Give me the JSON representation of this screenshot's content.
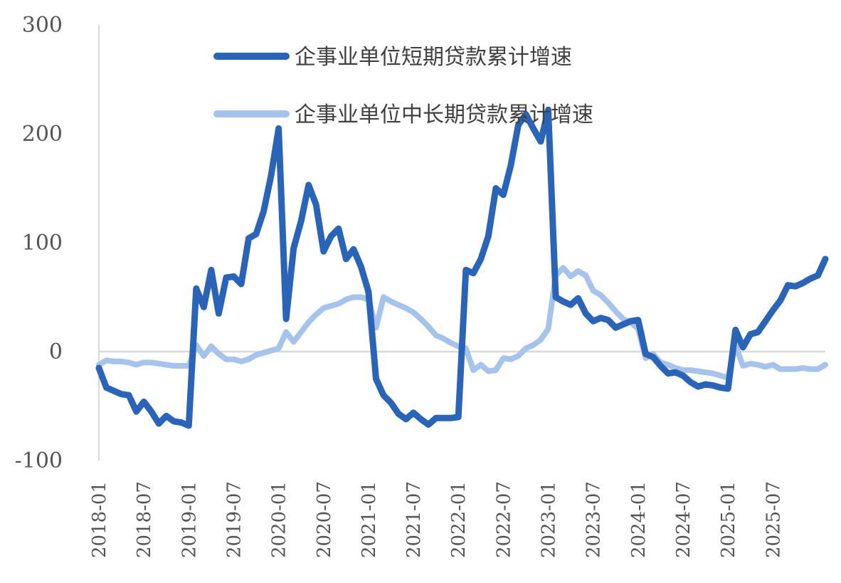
{
  "chart_data": {
    "type": "line",
    "title": "",
    "xlabel": "",
    "ylabel": "",
    "ylim": [
      -100,
      300
    ],
    "yticks": [
      300,
      200,
      100,
      0,
      -100
    ],
    "xtick_labels": [
      "2018-01",
      "2018-07",
      "2019-01",
      "2019-07",
      "2020-01",
      "2020-07",
      "2021-01",
      "2021-07",
      "2022-01",
      "2022-07",
      "2023-01",
      "2023-07",
      "2024-01",
      "2024-07",
      "2025-01",
      "2025-07"
    ],
    "grid": false,
    "legend_position": "top",
    "x_start": "2018-01",
    "series": [
      {
        "name": "企事业单位短期贷款累计增速",
        "color": "#2a64b8",
        "values": [
          -15,
          -33,
          -36,
          -39,
          -40,
          -55,
          -46,
          -55,
          -66,
          -59,
          -64,
          -65,
          -68,
          58,
          41,
          75,
          35,
          68,
          69,
          62,
          104,
          108,
          129,
          162,
          205,
          30,
          95,
          120,
          153,
          135,
          92,
          106,
          113,
          85,
          94,
          78,
          55,
          -25,
          -40,
          -47,
          -57,
          -62,
          -56,
          -62,
          -67,
          -61,
          -61,
          -61,
          -60,
          75,
          72,
          85,
          106,
          150,
          144,
          171,
          208,
          218,
          205,
          193,
          222,
          50,
          46,
          43,
          49,
          35,
          28,
          31,
          29,
          22,
          25,
          28,
          29,
          -2,
          -5,
          -13,
          -20,
          -19,
          -22,
          -28,
          -32,
          -30,
          -31,
          -33,
          -34,
          20,
          4,
          16,
          18,
          28,
          38,
          47,
          61,
          60,
          63,
          67,
          70,
          85
        ]
      },
      {
        "name": "企事业单位中长期贷款累计增速",
        "color": "#a6c3ec",
        "values": [
          -12,
          -8,
          -9,
          -9,
          -10,
          -12,
          -10,
          -10,
          -11,
          -12,
          -13,
          -13,
          -13,
          6,
          -4,
          5,
          -2,
          -7,
          -7,
          -9,
          -7,
          -3,
          -1,
          1,
          3,
          18,
          9,
          18,
          27,
          34,
          40,
          42,
          44,
          48,
          50,
          50,
          48,
          22,
          50,
          46,
          43,
          40,
          36,
          30,
          23,
          15,
          12,
          8,
          5,
          3,
          -17,
          -12,
          -18,
          -17,
          -6,
          -7,
          -4,
          3,
          6,
          11,
          21,
          70,
          77,
          69,
          74,
          70,
          56,
          52,
          45,
          37,
          30,
          27,
          21,
          -6,
          -2,
          -10,
          -12,
          -15,
          -17,
          -17,
          -18,
          -19,
          -20,
          -22,
          -24,
          6,
          -13,
          -11,
          -12,
          -14,
          -12,
          -16,
          -16,
          -16,
          -15,
          -16,
          -16,
          -12
        ]
      }
    ]
  }
}
